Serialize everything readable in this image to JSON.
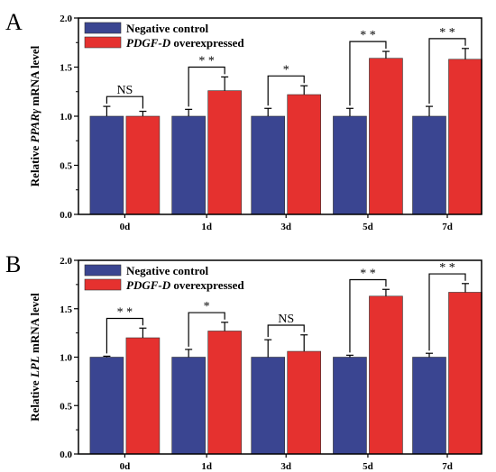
{
  "colors": {
    "control": "#3a4591",
    "overexpressed": "#e5312f"
  },
  "chart_data": [
    {
      "type": "bar",
      "panel": "A",
      "ylabel": {
        "prefix": "Relative ",
        "gene": "PPARγ",
        "suffix": " mRNA level"
      },
      "categories": [
        "0d",
        "1d",
        "3d",
        "5d",
        "7d"
      ],
      "ylim": [
        0.0,
        2.0
      ],
      "yticks": [
        "0.0",
        "0.5",
        "1.0",
        "1.5",
        "2.0"
      ],
      "legend": {
        "position": "top-left"
      },
      "series": [
        {
          "name": "Negative control",
          "name_italic_part": "",
          "values": [
            1.0,
            1.0,
            1.0,
            1.0,
            1.0
          ],
          "errors": [
            0.1,
            0.07,
            0.08,
            0.08,
            0.1
          ]
        },
        {
          "name": "PDGF-D overexpressed",
          "name_italic_part": "PDGF-D",
          "values": [
            1.0,
            1.26,
            1.22,
            1.59,
            1.58
          ],
          "errors": [
            0.05,
            0.14,
            0.09,
            0.07,
            0.11
          ]
        }
      ],
      "significance": [
        "NS",
        "* *",
        "*",
        "* *",
        "* *"
      ]
    },
    {
      "type": "bar",
      "panel": "B",
      "ylabel": {
        "prefix": "Relative ",
        "gene": "LPL",
        "suffix": " mRNA level"
      },
      "categories": [
        "0d",
        "1d",
        "3d",
        "5d",
        "7d"
      ],
      "ylim": [
        0.0,
        2.0
      ],
      "yticks": [
        "0.0",
        "0.5",
        "1.0",
        "1.5",
        "2.0"
      ],
      "legend": {
        "position": "top-left"
      },
      "series": [
        {
          "name": "Negative control",
          "name_italic_part": "",
          "values": [
            1.0,
            1.0,
            1.0,
            1.0,
            1.0
          ],
          "errors": [
            0.01,
            0.08,
            0.18,
            0.02,
            0.04
          ]
        },
        {
          "name": "PDGF-D overexpressed",
          "name_italic_part": "PDGF-D",
          "values": [
            1.2,
            1.27,
            1.06,
            1.63,
            1.67
          ],
          "errors": [
            0.1,
            0.09,
            0.17,
            0.07,
            0.09
          ]
        }
      ],
      "significance": [
        "* *",
        "*",
        "NS",
        "* *",
        "* *"
      ]
    }
  ]
}
